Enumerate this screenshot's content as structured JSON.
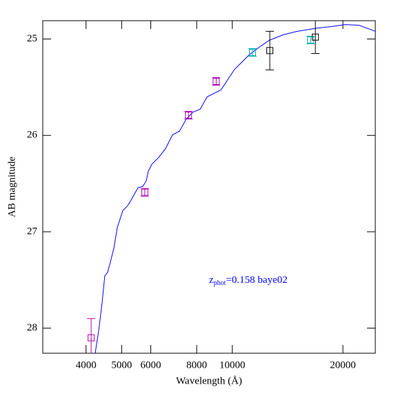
{
  "chart_data": {
    "type": "sed",
    "x_label": "Wavelength (Å)",
    "y_label": "AB magnitude",
    "annotation": {
      "parts": [
        "z",
        "phot",
        "=0.158 baye02"
      ],
      "color": "#0000ff"
    },
    "xlog": true,
    "xlim": [
      3050,
      24500
    ],
    "ylim": [
      24.81,
      28.26
    ],
    "y_inverted": true,
    "xticks": [
      4000,
      5000,
      6000,
      8000,
      10000,
      20000
    ],
    "yticks": [
      25,
      26,
      27,
      28
    ],
    "model": {
      "color": "#0000ff",
      "x": [
        4236,
        4328,
        4422,
        4499,
        4577,
        4658,
        4760,
        4864,
        5035,
        5192,
        5305,
        5538,
        5708,
        5833,
        5909,
        6038,
        6305,
        6584,
        6877,
        7181,
        7499,
        7831,
        8177,
        8540,
        8917,
        9310,
        9721,
        10150,
        10600,
        11070,
        11815,
        12605,
        13745,
        14990,
        17065,
        18612,
        20293,
        22131,
        24547
      ],
      "values": [
        28.257,
        28.029,
        27.743,
        27.457,
        27.421,
        27.314,
        27.171,
        26.957,
        26.779,
        26.729,
        26.671,
        26.543,
        26.529,
        26.471,
        26.371,
        26.3,
        26.229,
        26.136,
        25.993,
        25.957,
        25.829,
        25.757,
        25.729,
        25.6,
        25.564,
        25.529,
        25.421,
        25.314,
        25.243,
        25.171,
        25.086,
        25.014,
        24.957,
        24.921,
        24.886,
        24.871,
        24.85,
        24.857,
        24.921
      ]
    },
    "photometry": [
      {
        "color": "#b000b0",
        "x": [
          4130,
          5780,
          7600,
          9040
        ],
        "values": [
          28.1,
          26.59,
          25.79,
          25.44
        ],
        "errors": [
          0.2,
          0.04,
          0.04,
          0.04
        ]
      },
      {
        "color": "#00b0b0",
        "x": [
          11350,
          16330
        ],
        "values": [
          25.14,
          25.01
        ],
        "errors": [
          0.04,
          0.04
        ]
      },
      {
        "color": "#000000",
        "x": [
          12650,
          16830
        ],
        "values": [
          25.12,
          24.98
        ],
        "errors": [
          0.2,
          0.17
        ]
      }
    ]
  }
}
